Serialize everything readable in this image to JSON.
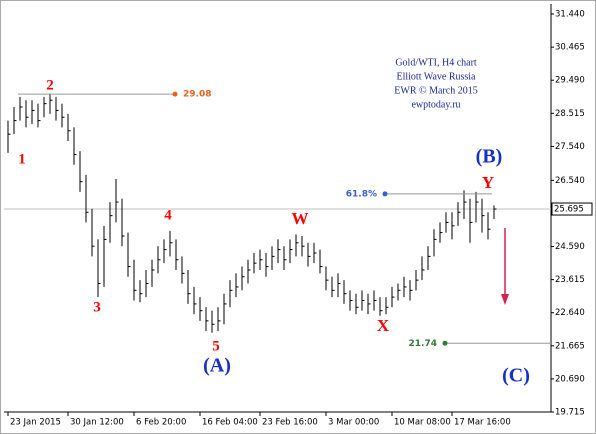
{
  "chart_data": {
    "type": "ohlc",
    "bar_color": "#000000",
    "high": [
      28.3,
      28.7,
      29.0,
      28.9,
      28.9,
      28.8,
      29.0,
      29.1,
      29.0,
      28.8,
      28.5,
      28.1,
      27.4,
      26.7,
      25.7,
      24.8,
      25.2,
      25.9,
      26.58,
      26.0,
      25.0,
      24.2,
      23.6,
      23.9,
      24.2,
      24.6,
      24.8,
      25.05,
      24.8,
      24.3,
      23.9,
      23.4,
      23.1,
      22.8,
      22.7,
      22.8,
      23.2,
      23.6,
      23.8,
      24.0,
      24.2,
      24.4,
      24.5,
      24.4,
      24.6,
      24.8,
      24.6,
      24.8,
      24.95,
      24.9,
      24.7,
      24.7,
      24.5,
      24.0,
      23.7,
      23.8,
      23.6,
      23.3,
      23.2,
      23.3,
      23.2,
      23.3,
      23.1,
      23.1,
      23.4,
      23.5,
      23.7,
      23.6,
      23.9,
      24.3,
      24.6,
      25.1,
      25.3,
      25.6,
      25.6,
      25.9,
      26.25,
      26.0,
      26.2,
      26.0,
      25.6,
      25.8
    ],
    "low": [
      27.35,
      27.9,
      28.3,
      28.1,
      28.2,
      28.1,
      28.4,
      28.5,
      28.3,
      28.1,
      27.7,
      27.0,
      26.2,
      25.3,
      24.3,
      23.1,
      23.4,
      24.7,
      25.3,
      24.6,
      23.7,
      23.0,
      22.95,
      23.1,
      23.4,
      23.8,
      24.1,
      24.3,
      23.9,
      23.5,
      22.9,
      22.6,
      22.4,
      22.1,
      22.05,
      22.1,
      22.3,
      22.8,
      23.1,
      23.3,
      23.5,
      23.8,
      23.9,
      23.7,
      23.9,
      24.1,
      23.9,
      24.1,
      24.3,
      24.3,
      24.0,
      24.1,
      23.8,
      23.3,
      23.1,
      23.1,
      22.9,
      22.7,
      22.6,
      22.7,
      22.6,
      22.7,
      22.55,
      22.6,
      22.8,
      23.0,
      23.1,
      23.0,
      23.3,
      23.6,
      23.9,
      24.3,
      24.7,
      25.0,
      24.8,
      25.2,
      25.4,
      24.7,
      25.3,
      25.0,
      24.8,
      25.4
    ],
    "close": [
      27.9,
      28.3,
      28.7,
      28.4,
      28.6,
      28.3,
      28.8,
      28.9,
      28.6,
      28.4,
      28.0,
      27.3,
      26.5,
      25.6,
      24.6,
      23.5,
      24.8,
      25.5,
      25.9,
      24.9,
      24.0,
      23.3,
      23.2,
      23.5,
      23.9,
      24.2,
      24.5,
      24.7,
      24.2,
      23.8,
      23.2,
      22.9,
      22.7,
      22.4,
      22.3,
      22.4,
      22.9,
      23.3,
      23.4,
      23.7,
      23.9,
      24.1,
      24.2,
      24.0,
      24.3,
      24.5,
      24.2,
      24.5,
      24.7,
      24.6,
      24.3,
      24.4,
      24.0,
      23.6,
      23.3,
      23.5,
      23.2,
      23.0,
      22.8,
      23.0,
      22.9,
      23.0,
      22.7,
      22.8,
      23.1,
      23.3,
      23.4,
      23.3,
      23.6,
      23.9,
      24.3,
      24.8,
      25.0,
      25.3,
      25.2,
      25.6,
      25.9,
      25.3,
      25.9,
      25.5,
      25.1,
      25.695
    ],
    "ylim": [
      19.715,
      31.706
    ],
    "yticks": [
      {
        "value": 31.44,
        "label": "31.440"
      },
      {
        "value": 30.465,
        "label": "30.465"
      },
      {
        "value": 29.49,
        "label": "29.490"
      },
      {
        "value": 28.515,
        "label": "28.515"
      },
      {
        "value": 27.54,
        "label": "27.540"
      },
      {
        "value": 26.54,
        "label": "26.540"
      },
      {
        "value": 24.59,
        "label": "24.590"
      },
      {
        "value": 23.615,
        "label": "23.615"
      },
      {
        "value": 22.64,
        "label": "22.640"
      },
      {
        "value": 21.665,
        "label": "21.665"
      },
      {
        "value": 20.69,
        "label": "20.690"
      },
      {
        "value": 19.715,
        "label": "19.715"
      }
    ],
    "xticks": [
      {
        "value": 0,
        "label": "23 Jan 2015"
      },
      {
        "value": 10,
        "label": "30 Jan 12:00"
      },
      {
        "value": 21,
        "label": "6 Feb 20:00"
      },
      {
        "value": 32,
        "label": "16 Feb 04:00"
      },
      {
        "value": 42,
        "label": "23 Feb 16:00"
      },
      {
        "value": 53,
        "label": "3 Mar 00:00"
      },
      {
        "value": 64,
        "label": "10 Mar 08:00"
      },
      {
        "value": 74,
        "label": "17 Mar 16:00"
      }
    ],
    "last_price": {
      "value": 25.695,
      "label": "25.695"
    },
    "levels": [
      {
        "price": 29.08,
        "color": "#e8601c"
      },
      {
        "price": 26.14,
        "text": "61.8%",
        "color": "#3a5fcd"
      },
      {
        "price": 21.74,
        "color": "#2e7d32"
      }
    ],
    "wave_labels": [
      "1",
      "2",
      "3",
      "4",
      "5",
      "W",
      "X",
      "Y",
      "(A)",
      "(B)",
      "(C)"
    ],
    "note": [
      "Gold/WTI, H4 chart",
      "Elliott Wave Russia",
      "EWR © March 2015",
      "ewptoday.ru"
    ]
  }
}
